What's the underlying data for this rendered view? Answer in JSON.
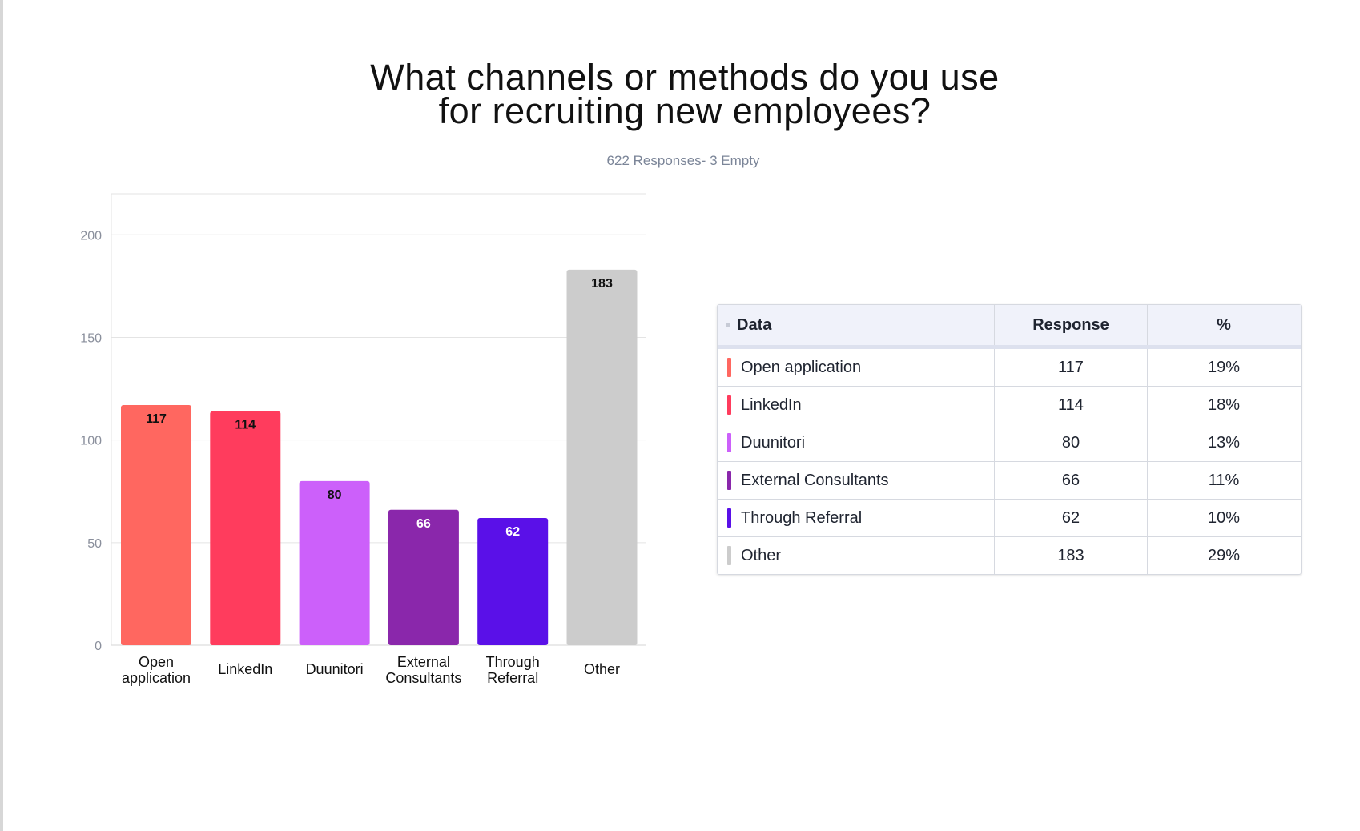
{
  "chart_data": {
    "type": "bar",
    "title_lines": [
      "What channels or methods do you use",
      "for recruiting new employees?"
    ],
    "subtitle": "622 Responses- 3 Empty",
    "categories": [
      "Open application",
      "LinkedIn",
      "Duunitori",
      "External Consultants",
      "Through Referral",
      "Other"
    ],
    "category_labels": [
      [
        "Open",
        "application"
      ],
      [
        "LinkedIn"
      ],
      [
        "Duunitori"
      ],
      [
        "External",
        "Consultants"
      ],
      [
        "Through",
        "Referral"
      ],
      [
        "Other"
      ]
    ],
    "values": [
      117,
      114,
      80,
      66,
      62,
      183
    ],
    "colors": [
      "#ff6760",
      "#ff3c5d",
      "#cc60fa",
      "#8a27ab",
      "#5a10e8",
      "#cccccc"
    ],
    "label_colors": [
      "#111111",
      "#111111",
      "#111111",
      "#ffffff",
      "#ffffff",
      "#111111"
    ],
    "ylim": [
      0,
      220
    ],
    "yticks": [
      0,
      50,
      100,
      150,
      200
    ],
    "xlabel": "",
    "ylabel": "",
    "grid": true
  },
  "table": {
    "headers": {
      "data": "Data",
      "response": "Response",
      "percent": "%"
    },
    "rows": [
      {
        "label": "Open application",
        "response": "117",
        "percent": "19%",
        "color": "#ff6760"
      },
      {
        "label": "LinkedIn",
        "response": "114",
        "percent": "18%",
        "color": "#ff3c5d"
      },
      {
        "label": "Duunitori",
        "response": "80",
        "percent": "13%",
        "color": "#cc60fa"
      },
      {
        "label": "External Consultants",
        "response": "66",
        "percent": "11%",
        "color": "#8a27ab"
      },
      {
        "label": "Through Referral",
        "response": "62",
        "percent": "10%",
        "color": "#5a10e8"
      },
      {
        "label": "Other",
        "response": "183",
        "percent": "29%",
        "color": "#cccccc"
      }
    ]
  }
}
